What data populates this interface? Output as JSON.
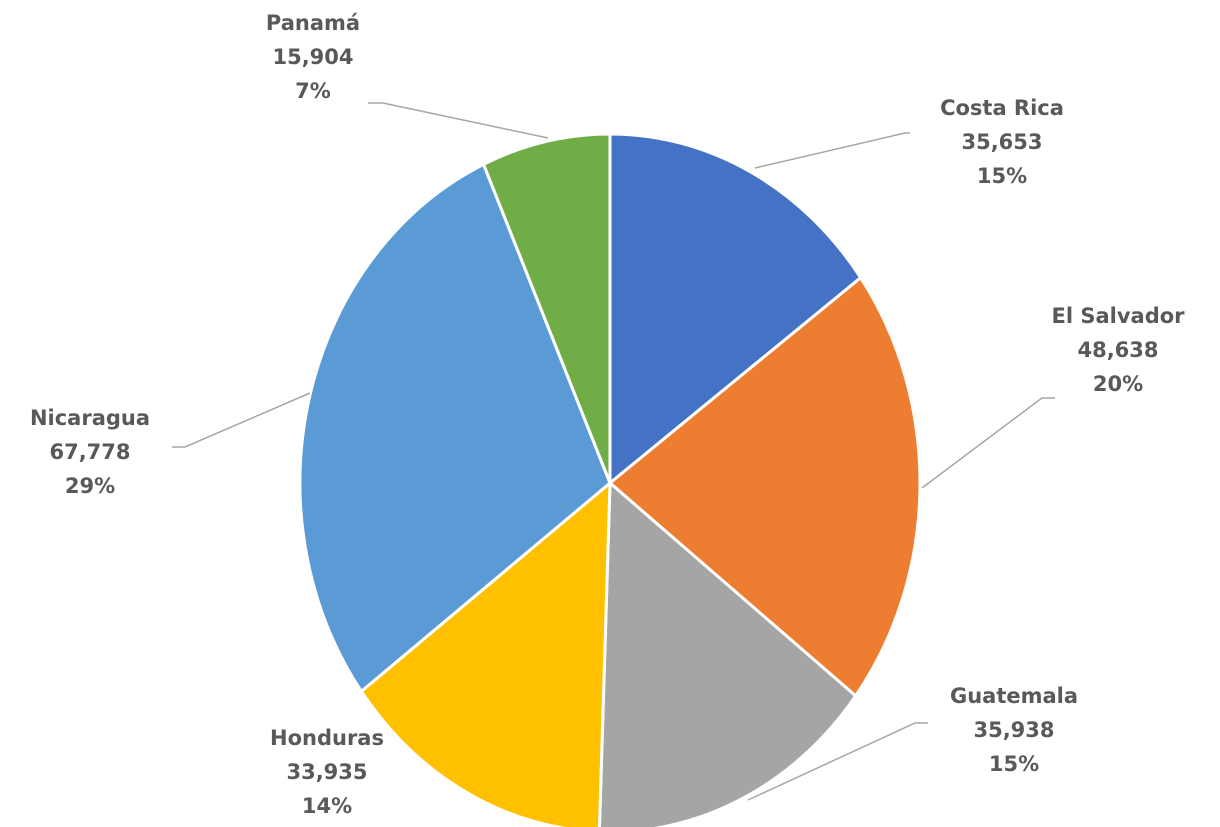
{
  "chart_data": {
    "type": "pie",
    "title": "",
    "slices": [
      {
        "label": "Costa Rica",
        "value": 35653,
        "value_text": "35,653",
        "percent_text": "15%",
        "color": "#4472C4"
      },
      {
        "label": "El Salvador",
        "value": 48638,
        "value_text": "48,638",
        "percent_text": "20%",
        "color": "#ED7D31"
      },
      {
        "label": "Guatemala",
        "value": 35938,
        "value_text": "35,938",
        "percent_text": "15%",
        "color": "#A5A5A5"
      },
      {
        "label": "Honduras",
        "value": 33935,
        "value_text": "33,935",
        "percent_text": "14%",
        "color": "#FFC000"
      },
      {
        "label": "Nicaragua",
        "value": 67778,
        "value_text": "67,778",
        "percent_text": "29%",
        "color": "#5B9BD5"
      },
      {
        "label": "Panamá",
        "value": 15904,
        "value_text": "15,904",
        "percent_text": "7%",
        "color": "#70AD47"
      }
    ],
    "start_angle": "12 o'clock",
    "direction": "clockwise",
    "legend": "none",
    "data_labels": "outside with leader lines"
  }
}
